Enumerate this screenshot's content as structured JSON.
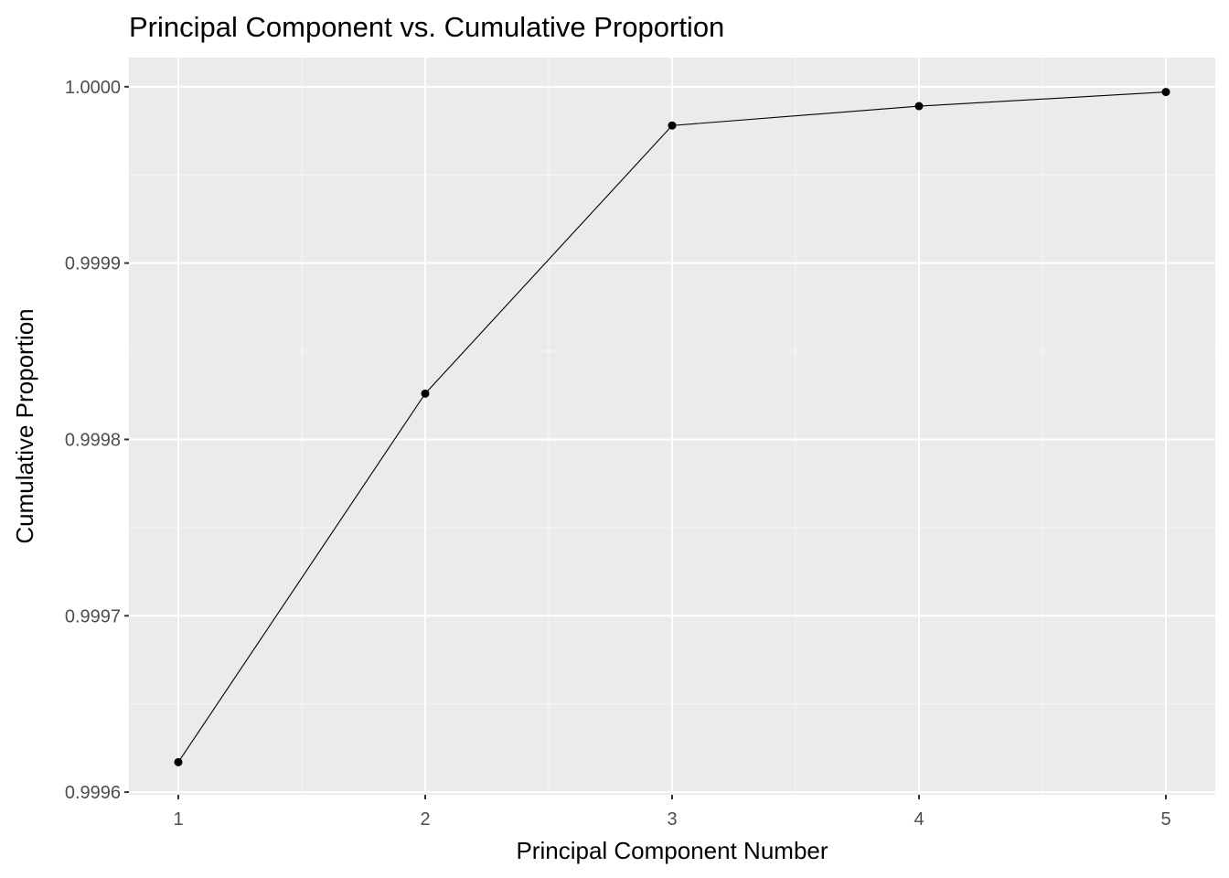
{
  "chart_data": {
    "type": "line",
    "title": "Principal Component vs. Cumulative Proportion",
    "xlabel": "Principal Component Number",
    "ylabel": "Cumulative Proportion",
    "x": [
      1,
      2,
      3,
      4,
      5
    ],
    "series": [
      {
        "values": [
          0.999617,
          0.999826,
          0.999978,
          0.999989,
          0.999997
        ]
      }
    ],
    "xlim": [
      0.8,
      5.2
    ],
    "ylim": [
      0.9995985,
      1.0000165
    ],
    "x_ticks": [
      1,
      2,
      3,
      4,
      5
    ],
    "x_tick_labels": [
      "1",
      "2",
      "3",
      "4",
      "5"
    ],
    "y_ticks": [
      0.9996,
      0.9997,
      0.9998,
      0.9999,
      1.0
    ],
    "y_tick_labels": [
      "0.9996",
      "0.9997",
      "0.9998",
      "0.9999",
      "1.0000"
    ],
    "x_minor_ticks": [
      1.5,
      2.5,
      3.5,
      4.5
    ],
    "y_minor_ticks": [
      0.99965,
      0.99975,
      0.99985,
      0.99995
    ],
    "grid": true,
    "legend": "none",
    "colors": {
      "panel_background": "#ebebeb",
      "grid_major": "#ffffff",
      "grid_minor": "#f7f7f7",
      "line": "#000000",
      "point": "#000000",
      "tick_text": "#4d4d4d",
      "tick_mark": "#333333"
    }
  }
}
